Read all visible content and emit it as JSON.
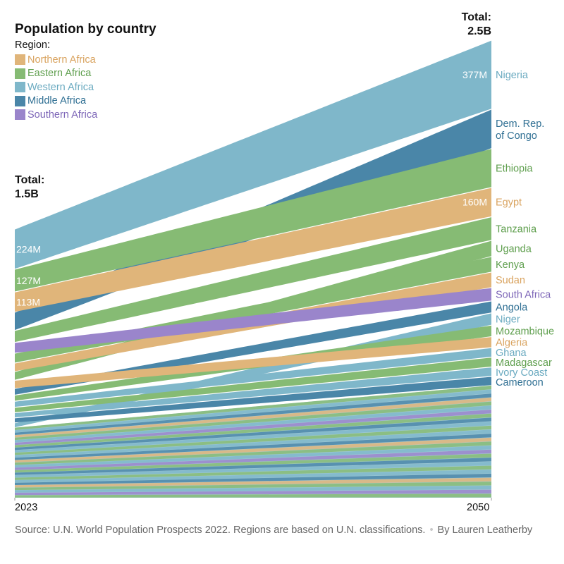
{
  "title": "Population by country",
  "legend": {
    "title": "Region:",
    "items": [
      {
        "label": "Northern Africa",
        "color": "#e0b57a"
      },
      {
        "label": "Eastern Africa",
        "color": "#86bb74"
      },
      {
        "label": "Western Africa",
        "color": "#7fb7ca"
      },
      {
        "label": "Middle Africa",
        "color": "#4a86a8"
      },
      {
        "label": "Southern Africa",
        "color": "#9a85cb"
      }
    ]
  },
  "totals": {
    "start_label": "Total:",
    "start_value": "1.5B",
    "end_label": "Total:",
    "end_value": "2.5B"
  },
  "years": {
    "start": "2023",
    "end": "2050"
  },
  "source": {
    "text": "Source: U.N. World Population Prospects 2022. Regions are based on U.N. classifications.",
    "separator": "•",
    "credit": "By Lauren Leatherby"
  },
  "chart_data": {
    "type": "area",
    "title": "Population by country",
    "x": [
      2023,
      2050
    ],
    "total_start_billion": 1.5,
    "total_end_billion": 2.5,
    "series": [
      {
        "name": "Nigeria",
        "region": "Western Africa",
        "rank_start": 1,
        "rank_end": 1,
        "start_label": "224M",
        "end_label": "377M",
        "start_millions": 224,
        "end_millions": 377
      },
      {
        "name": "Ethiopia",
        "region": "Eastern Africa",
        "rank_start": 2,
        "rank_end": 3,
        "start_label": "127M",
        "start_millions": 127,
        "end_millions": 213
      },
      {
        "name": "Egypt",
        "region": "Northern Africa",
        "rank_start": 3,
        "rank_end": 4,
        "start_label": "113M",
        "end_label": "160M",
        "start_millions": 113,
        "end_millions": 160
      },
      {
        "name": "Dem. Rep. of Congo",
        "region": "Middle Africa",
        "rank_start": 4,
        "rank_end": 2,
        "start_millions": 102,
        "end_millions": 215
      },
      {
        "name": "Tanzania",
        "region": "Eastern Africa",
        "rank_start": 5,
        "rank_end": 5,
        "start_millions": 67,
        "end_millions": 129
      },
      {
        "name": "South Africa",
        "region": "Southern Africa",
        "rank_start": 6,
        "rank_end": 9,
        "start_millions": 60,
        "end_millions": 73
      },
      {
        "name": "Kenya",
        "region": "Eastern Africa",
        "rank_start": 7,
        "rank_end": 7,
        "start_millions": 55,
        "end_millions": 85
      },
      {
        "name": "Sudan",
        "region": "Northern Africa",
        "rank_start": 8,
        "rank_end": 8,
        "start_millions": 48,
        "end_millions": 85
      },
      {
        "name": "Uganda",
        "region": "Eastern Africa",
        "rank_start": 9,
        "rank_end": 6,
        "start_millions": 48,
        "end_millions": 88
      },
      {
        "name": "Algeria",
        "region": "Northern Africa",
        "rank_start": 10,
        "rank_end": 13,
        "start_millions": 46,
        "end_millions": 60
      },
      {
        "name": "Angola",
        "region": "Middle Africa",
        "rank_start": 11,
        "rank_end": 10,
        "start_millions": 37,
        "end_millions": 65
      },
      {
        "name": "Mozambique",
        "region": "Eastern Africa",
        "rank_start": 12,
        "rank_end": 12,
        "start_millions": 34,
        "end_millions": 63
      },
      {
        "name": "Ghana",
        "region": "Western Africa",
        "rank_start": 13,
        "rank_end": 14,
        "start_millions": 34,
        "end_millions": 52
      },
      {
        "name": "Madagascar",
        "region": "Eastern Africa",
        "rank_start": 14,
        "rank_end": 15,
        "start_millions": 30,
        "end_millions": 54
      },
      {
        "name": "Ivory Coast",
        "region": "Western Africa",
        "rank_start": 15,
        "rank_end": 16,
        "start_millions": 29,
        "end_millions": 51
      },
      {
        "name": "Cameroon",
        "region": "Middle Africa",
        "rank_start": 16,
        "rank_end": 17,
        "start_millions": 28,
        "end_millions": 50
      },
      {
        "name": "Niger",
        "region": "Western Africa",
        "rank_start": 17,
        "rank_end": 11,
        "start_millions": 27,
        "end_millions": 67
      }
    ]
  }
}
